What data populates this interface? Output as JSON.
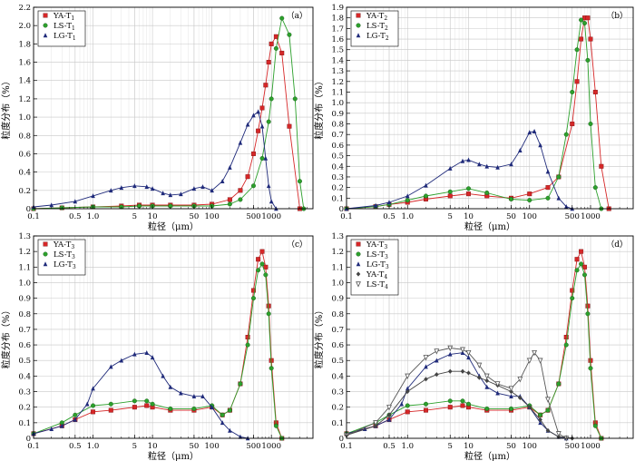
{
  "chart_data": [
    {
      "type": "line",
      "panel_label": "（a）",
      "xlabel": "粒径（μm）",
      "ylabel": "粒度分布（%）",
      "xscale": "log",
      "xlim": [
        0.1,
        5000
      ],
      "ylim": [
        0,
        2.2
      ],
      "yticks": [
        "0",
        "0.2",
        "0.4",
        "0.6",
        "0.8",
        "1.0",
        "1.2",
        "1.4",
        "1.6",
        "1.8",
        "2.0",
        "2.2"
      ],
      "xticks": [
        "0.1",
        "0.5",
        "1.0",
        "5",
        "10",
        "50",
        "100",
        "500",
        "1000"
      ],
      "legend_position": "top-left",
      "series": [
        {
          "name": "YA-T",
          "sub": "1",
          "color": "#d62728",
          "marker": "square",
          "x": [
            0.1,
            0.3,
            1,
            3,
            6,
            10,
            20,
            50,
            100,
            200,
            300,
            400,
            500,
            600,
            700,
            800,
            900,
            1000,
            1200,
            1500,
            2000,
            3000
          ],
          "y": [
            0,
            0.01,
            0.02,
            0.03,
            0.04,
            0.04,
            0.04,
            0.04,
            0.05,
            0.1,
            0.2,
            0.35,
            0.6,
            0.85,
            1.1,
            1.35,
            1.6,
            1.8,
            1.88,
            1.7,
            0.9,
            0
          ]
        },
        {
          "name": "LS-T",
          "sub": "1",
          "color": "#2ca02c",
          "marker": "circle",
          "x": [
            0.1,
            0.3,
            1,
            3,
            6,
            10,
            20,
            50,
            100,
            200,
            300,
            500,
            700,
            900,
            1000,
            1200,
            1500,
            2000,
            2500,
            3000,
            3500
          ],
          "y": [
            0,
            0.01,
            0.02,
            0.02,
            0.03,
            0.03,
            0.03,
            0.03,
            0.03,
            0.05,
            0.1,
            0.25,
            0.55,
            0.95,
            1.2,
            1.75,
            2.08,
            1.9,
            1.2,
            0.3,
            0
          ]
        },
        {
          "name": "LG-T",
          "sub": "1",
          "color": "#1f2a7a",
          "marker": "triangle",
          "x": [
            0.1,
            0.2,
            0.5,
            1,
            2,
            3,
            5,
            8,
            10,
            15,
            20,
            30,
            50,
            70,
            100,
            150,
            200,
            300,
            400,
            500,
            600,
            700,
            800,
            900,
            1000,
            1200
          ],
          "y": [
            0.02,
            0.04,
            0.08,
            0.14,
            0.2,
            0.23,
            0.25,
            0.24,
            0.22,
            0.17,
            0.15,
            0.16,
            0.22,
            0.24,
            0.2,
            0.3,
            0.45,
            0.72,
            0.92,
            1.02,
            1.06,
            0.9,
            0.55,
            0.25,
            0.08,
            0
          ]
        }
      ]
    },
    {
      "type": "line",
      "panel_label": "（b）",
      "xlabel": "粒径（μm）",
      "ylabel": "粒度分布（%）",
      "xscale": "log",
      "xlim": [
        0.1,
        5000
      ],
      "ylim": [
        0,
        1.9
      ],
      "yticks": [
        "0",
        "0.1",
        "0.2",
        "0.3",
        "0.4",
        "0.5",
        "0.6",
        "0.7",
        "0.8",
        "0.9",
        "1.0",
        "1.1",
        "1.2",
        "1.3",
        "1.4",
        "1.5",
        "1.6",
        "1.7",
        "1.8",
        "1.9"
      ],
      "xticks": [
        "0.1",
        "0.5",
        "1.0",
        "5",
        "10",
        "50",
        "100",
        "500",
        "1000"
      ],
      "legend_position": "top-left",
      "series": [
        {
          "name": "YA-T",
          "sub": "2",
          "color": "#d62728",
          "marker": "square",
          "x": [
            0.1,
            0.3,
            0.5,
            1,
            2,
            5,
            10,
            20,
            50,
            100,
            200,
            300,
            500,
            600,
            700,
            800,
            900,
            1000,
            1200,
            1500,
            2000
          ],
          "y": [
            0,
            0.02,
            0.04,
            0.06,
            0.09,
            0.12,
            0.14,
            0.12,
            0.1,
            0.14,
            0.2,
            0.3,
            0.8,
            1.2,
            1.6,
            1.8,
            1.8,
            1.6,
            1.1,
            0.4,
            0
          ]
        },
        {
          "name": "LS-T",
          "sub": "2",
          "color": "#2ca02c",
          "marker": "circle",
          "x": [
            0.1,
            0.3,
            0.5,
            1,
            2,
            5,
            10,
            20,
            50,
            100,
            200,
            300,
            400,
            500,
            600,
            700,
            800,
            900,
            1000,
            1200,
            1500
          ],
          "y": [
            0,
            0.02,
            0.04,
            0.08,
            0.12,
            0.16,
            0.19,
            0.15,
            0.09,
            0.08,
            0.1,
            0.3,
            0.7,
            1.1,
            1.5,
            1.78,
            1.75,
            1.4,
            0.8,
            0.2,
            0
          ]
        },
        {
          "name": "LG-T",
          "sub": "2",
          "color": "#1f2a7a",
          "marker": "triangle",
          "x": [
            0.1,
            0.3,
            0.5,
            1,
            2,
            5,
            8,
            10,
            15,
            20,
            30,
            50,
            70,
            100,
            120,
            150,
            200,
            300,
            400,
            500
          ],
          "y": [
            0,
            0.03,
            0.06,
            0.12,
            0.22,
            0.38,
            0.45,
            0.46,
            0.42,
            0.4,
            0.39,
            0.42,
            0.55,
            0.72,
            0.73,
            0.6,
            0.35,
            0.1,
            0.02,
            0
          ]
        }
      ]
    },
    {
      "type": "line",
      "panel_label": "（c）",
      "xlabel": "粒径（μm）",
      "ylabel": "粒度分布（%）",
      "xscale": "log",
      "xlim": [
        0.1,
        5000
      ],
      "ylim": [
        0,
        1.3
      ],
      "yticks": [
        "0",
        "0.1",
        "0.2",
        "0.3",
        "0.4",
        "0.5",
        "0.6",
        "0.7",
        "0.8",
        "0.9",
        "1.0",
        "1.1",
        "1.2",
        "1.3"
      ],
      "xticks": [
        "0.1",
        "0.5",
        "1.0",
        "5",
        "10",
        "50",
        "100",
        "500",
        "1000"
      ],
      "legend_position": "top-left",
      "series": [
        {
          "name": "YA-T",
          "sub": "3",
          "color": "#d62728",
          "marker": "square",
          "x": [
            0.1,
            0.3,
            0.5,
            1,
            2,
            5,
            8,
            10,
            20,
            50,
            100,
            150,
            200,
            300,
            400,
            500,
            600,
            700,
            800,
            900,
            1000,
            1200,
            1500
          ],
          "y": [
            0.03,
            0.08,
            0.12,
            0.17,
            0.18,
            0.2,
            0.21,
            0.2,
            0.18,
            0.18,
            0.2,
            0.15,
            0.18,
            0.35,
            0.65,
            0.95,
            1.15,
            1.2,
            1.1,
            0.85,
            0.5,
            0.1,
            0
          ]
        },
        {
          "name": "LS-T",
          "sub": "3",
          "color": "#2ca02c",
          "marker": "circle",
          "x": [
            0.1,
            0.3,
            0.5,
            1,
            2,
            5,
            8,
            10,
            20,
            50,
            100,
            150,
            200,
            300,
            400,
            500,
            600,
            700,
            800,
            900,
            1000,
            1200,
            1500
          ],
          "y": [
            0.03,
            0.1,
            0.15,
            0.21,
            0.22,
            0.24,
            0.24,
            0.22,
            0.19,
            0.19,
            0.21,
            0.15,
            0.18,
            0.35,
            0.6,
            0.9,
            1.08,
            1.12,
            1.05,
            0.8,
            0.45,
            0.08,
            0
          ]
        },
        {
          "name": "LG-T",
          "sub": "3",
          "color": "#1f2a7a",
          "marker": "triangle",
          "x": [
            0.1,
            0.2,
            0.3,
            0.5,
            0.8,
            1,
            2,
            3,
            5,
            8,
            10,
            15,
            20,
            30,
            50,
            70,
            100,
            150,
            200,
            300,
            400
          ],
          "y": [
            0.03,
            0.06,
            0.08,
            0.12,
            0.22,
            0.32,
            0.46,
            0.5,
            0.54,
            0.55,
            0.52,
            0.4,
            0.33,
            0.29,
            0.27,
            0.27,
            0.2,
            0.1,
            0.05,
            0.01,
            0
          ]
        }
      ]
    },
    {
      "type": "line",
      "panel_label": "（d）",
      "xlabel": "粒径（μm）",
      "ylabel": "粒度分布（%）",
      "xscale": "log",
      "xlim": [
        0.1,
        5000
      ],
      "ylim": [
        0,
        1.3
      ],
      "yticks": [
        "0",
        "0.1",
        "0.2",
        "0.3",
        "0.4",
        "0.5",
        "0.6",
        "0.7",
        "0.8",
        "0.9",
        "1.0",
        "1.1",
        "1.2",
        "1.3"
      ],
      "xticks": [
        "0.1",
        "0.5",
        "1.0",
        "5",
        "10",
        "50",
        "100",
        "500",
        "1000"
      ],
      "legend_position": "top-left",
      "series": [
        {
          "name": "YA-T",
          "sub": "3",
          "color": "#d62728",
          "marker": "square",
          "x": [
            0.1,
            0.3,
            0.5,
            1,
            2,
            5,
            8,
            10,
            20,
            50,
            100,
            150,
            200,
            300,
            400,
            500,
            600,
            700,
            800,
            900,
            1000,
            1200,
            1500
          ],
          "y": [
            0.03,
            0.08,
            0.12,
            0.17,
            0.18,
            0.2,
            0.21,
            0.2,
            0.18,
            0.18,
            0.2,
            0.15,
            0.18,
            0.35,
            0.65,
            0.95,
            1.15,
            1.2,
            1.1,
            0.85,
            0.5,
            0.1,
            0
          ]
        },
        {
          "name": "LS-T",
          "sub": "3",
          "color": "#2ca02c",
          "marker": "circle",
          "x": [
            0.1,
            0.3,
            0.5,
            1,
            2,
            5,
            8,
            10,
            20,
            50,
            100,
            150,
            200,
            300,
            400,
            500,
            600,
            700,
            800,
            900,
            1000,
            1200,
            1500
          ],
          "y": [
            0.03,
            0.1,
            0.15,
            0.21,
            0.22,
            0.24,
            0.24,
            0.22,
            0.19,
            0.19,
            0.21,
            0.15,
            0.18,
            0.35,
            0.6,
            0.9,
            1.08,
            1.12,
            1.05,
            0.8,
            0.45,
            0.08,
            0
          ]
        },
        {
          "name": "LG-T",
          "sub": "3",
          "color": "#1f2a7a",
          "marker": "triangle",
          "x": [
            0.1,
            0.2,
            0.3,
            0.5,
            0.8,
            1,
            2,
            3,
            5,
            8,
            10,
            15,
            20,
            30,
            50,
            70,
            100,
            150,
            200,
            300,
            400
          ],
          "y": [
            0.03,
            0.06,
            0.08,
            0.12,
            0.22,
            0.32,
            0.46,
            0.5,
            0.54,
            0.55,
            0.52,
            0.4,
            0.33,
            0.29,
            0.27,
            0.27,
            0.2,
            0.1,
            0.05,
            0.01,
            0
          ]
        },
        {
          "name": "YA-T",
          "sub": "4",
          "color": "#444444",
          "marker": "diamond",
          "x": [
            0.1,
            0.3,
            0.5,
            1,
            2,
            3,
            5,
            8,
            10,
            15,
            20,
            30,
            50,
            70,
            100,
            150,
            200,
            300,
            400,
            500
          ],
          "y": [
            0.02,
            0.08,
            0.15,
            0.3,
            0.38,
            0.41,
            0.43,
            0.43,
            0.42,
            0.39,
            0.37,
            0.34,
            0.3,
            0.26,
            0.2,
            0.12,
            0.05,
            0.01,
            0.005,
            0
          ]
        },
        {
          "name": "LS-T",
          "sub": "4",
          "color": "#555555",
          "marker": "triangle-down",
          "x": [
            0.1,
            0.3,
            0.5,
            1,
            2,
            3,
            5,
            8,
            10,
            15,
            20,
            30,
            50,
            70,
            100,
            120,
            150,
            200,
            300,
            400
          ],
          "y": [
            0.02,
            0.1,
            0.2,
            0.4,
            0.52,
            0.56,
            0.58,
            0.57,
            0.55,
            0.47,
            0.4,
            0.35,
            0.32,
            0.38,
            0.5,
            0.55,
            0.5,
            0.25,
            0.03,
            0
          ]
        }
      ]
    }
  ]
}
